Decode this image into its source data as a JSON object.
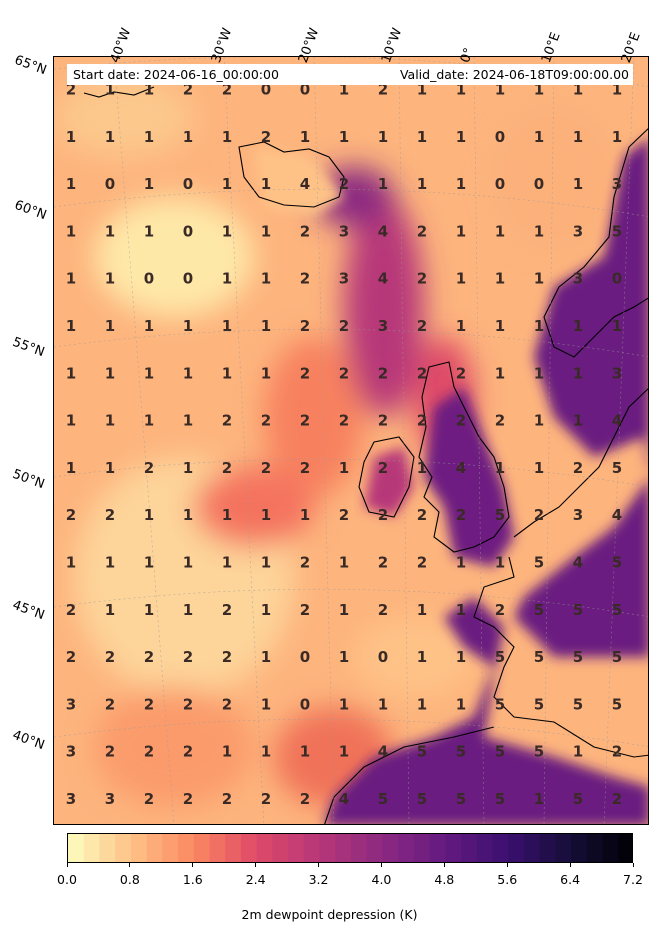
{
  "header": {
    "start_date": "Start date: 2024-06-16_00:00:00",
    "valid_date": "Valid_date: 2024-06-18T09:00:00.00"
  },
  "longitude_labels": [
    "40°W",
    "30°W",
    "20°W",
    "10°W",
    "0°",
    "10°E",
    "20°E"
  ],
  "latitude_labels": [
    "65°N",
    "60°N",
    "55°N",
    "50°N",
    "45°N",
    "40°N"
  ],
  "colorbar": {
    "label": "2m dewpoint depression (K)",
    "ticks": [
      "0.0",
      "0.8",
      "1.6",
      "2.4",
      "3.2",
      "4.0",
      "4.8",
      "5.6",
      "6.4",
      "7.2"
    ],
    "min": 0.0,
    "max": 7.2,
    "colormap": "magma_r",
    "colors": [
      "#fcfdbf",
      "#fec287",
      "#fb8861",
      "#de4968",
      "#b73779",
      "#8c2981",
      "#641a80",
      "#3b0f70",
      "#140e36",
      "#000004"
    ]
  },
  "grid_values": [
    [
      2,
      1,
      1,
      2,
      2,
      0,
      0,
      1,
      2,
      1,
      1,
      1,
      1,
      1,
      1
    ],
    [
      1,
      1,
      1,
      1,
      1,
      2,
      1,
      1,
      1,
      1,
      1,
      0,
      1,
      1,
      1
    ],
    [
      1,
      0,
      1,
      0,
      1,
      1,
      4,
      2,
      1,
      1,
      1,
      0,
      0,
      1,
      3
    ],
    [
      1,
      1,
      1,
      0,
      1,
      1,
      2,
      3,
      4,
      2,
      1,
      1,
      1,
      3,
      5
    ],
    [
      1,
      1,
      0,
      0,
      1,
      1,
      2,
      3,
      4,
      2,
      1,
      1,
      1,
      3,
      0
    ],
    [
      1,
      1,
      1,
      1,
      1,
      1,
      2,
      2,
      3,
      2,
      1,
      1,
      1,
      1,
      1
    ],
    [
      1,
      1,
      1,
      1,
      1,
      1,
      2,
      2,
      2,
      2,
      2,
      1,
      1,
      1,
      3
    ],
    [
      1,
      1,
      1,
      1,
      2,
      2,
      2,
      2,
      2,
      2,
      2,
      2,
      1,
      1,
      4
    ],
    [
      1,
      1,
      2,
      1,
      2,
      2,
      2,
      1,
      2,
      1,
      4,
      1,
      1,
      2,
      5
    ],
    [
      2,
      2,
      1,
      1,
      1,
      1,
      1,
      2,
      2,
      2,
      2,
      5,
      2,
      3,
      4
    ],
    [
      1,
      1,
      1,
      1,
      1,
      1,
      2,
      1,
      2,
      2,
      1,
      1,
      5,
      4,
      5
    ],
    [
      2,
      1,
      1,
      1,
      2,
      1,
      2,
      1,
      2,
      1,
      1,
      2,
      5,
      5,
      5
    ],
    [
      2,
      2,
      2,
      2,
      2,
      1,
      0,
      1,
      0,
      1,
      1,
      5,
      5,
      5,
      5
    ],
    [
      3,
      2,
      2,
      2,
      2,
      1,
      0,
      1,
      1,
      1,
      1,
      5,
      5,
      5,
      5
    ],
    [
      3,
      2,
      2,
      2,
      1,
      1,
      1,
      1,
      4,
      5,
      5,
      5,
      5,
      1,
      2
    ],
    [
      3,
      3,
      2,
      2,
      2,
      2,
      2,
      4,
      5,
      5,
      5,
      5,
      1,
      5,
      2
    ]
  ]
}
